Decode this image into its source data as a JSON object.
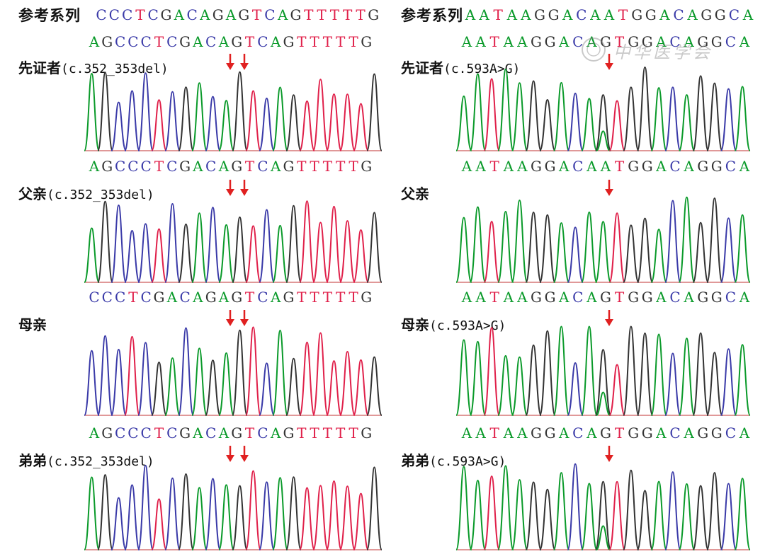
{
  "left": {
    "ref_label": "参考系列",
    "ref_seq": "CCCTCGACAGAGTCAGTTTTTG",
    "panels": [
      {
        "seq": "AGCCCTCGACAGTCAGTTTTTG",
        "name": "先证者",
        "variant": "(c.352_353del)"
      },
      {
        "seq": "AGCCCTCGACAGTCAGTTTTTG",
        "name": "父亲",
        "variant": "(c.352_353del)"
      },
      {
        "seq": "CCCTCGACAGAGTCAGTTTTTG",
        "name": "母亲",
        "variant": ""
      },
      {
        "seq": "AGCCCTCGACAGTCAGTTTTTG",
        "name": "弟弟",
        "variant": "(c.352_353del)"
      }
    ]
  },
  "right": {
    "ref_label": "参考系列",
    "ref_seq": "AATAAGGACAATGGACAGGCA",
    "panels": [
      {
        "seq": "AATAAGGACAGTGGACAGGCA",
        "name": "先证者",
        "variant": "(c.593A>G)"
      },
      {
        "seq": "AATAAGGACAATGGACAGGCA",
        "name": "父亲",
        "variant": ""
      },
      {
        "seq": "AATAAGGACAGTGGACAGGCA",
        "name": "母亲",
        "variant": "(c.593A>G)"
      },
      {
        "seq": "AATAAGGACAGTGGACAGGCA",
        "name": "弟弟",
        "variant": "(c.593A>G)"
      }
    ]
  },
  "watermark_text": "中华医学会",
  "colors": {
    "A": "#0a9a2a",
    "C": "#3a3aa8",
    "G": "#333333",
    "T": "#e0204a",
    "arrow": "#e02020"
  },
  "icons": {
    "arrow": "red-down-arrow-icon",
    "watermark": "journal-seal-watermark-icon"
  }
}
